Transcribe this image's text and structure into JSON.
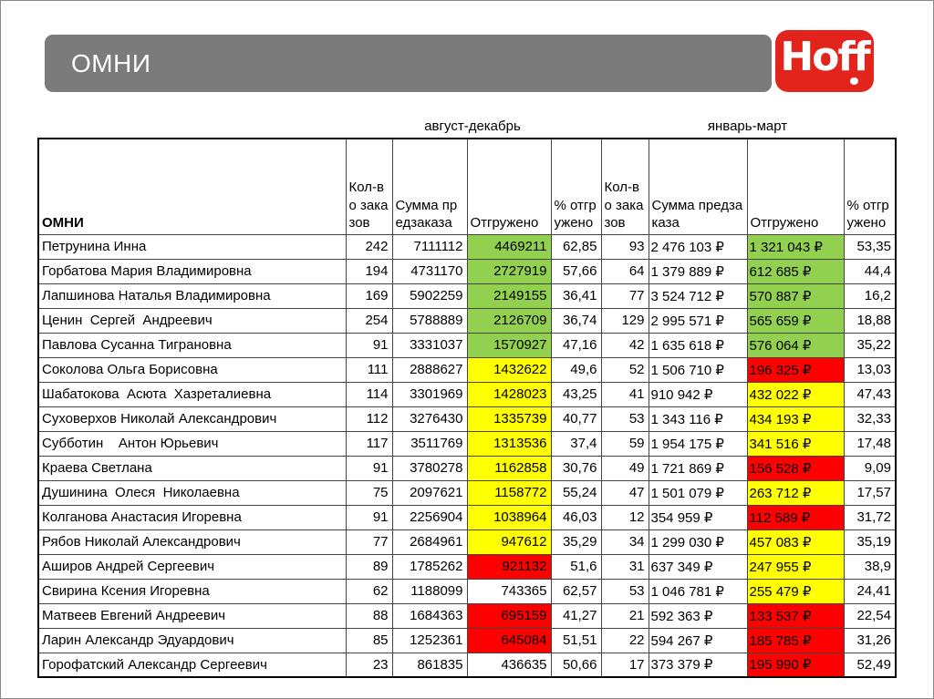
{
  "title": "ОМНИ",
  "logo": {
    "text": "Hoff"
  },
  "periods": {
    "first": "август-декабрь",
    "second": "январь-март"
  },
  "colors": {
    "green": "#92D050",
    "yellow": "#FFFF00",
    "red": "#FF0000",
    "title_gray": "#7B7B7B",
    "logo_red": "#E3241D"
  },
  "table": {
    "first_header": "ОМНИ",
    "col_headers": [
      "Кол-во заказов",
      "Сумма предзаказа",
      "Отгружено",
      "% отгружено",
      "Кол-во заказов",
      "Сумма предзаказа",
      "Отгружено",
      "% отгружено"
    ],
    "rows": [
      {
        "name": "Петрунина Инна",
        "values": [
          "242",
          "7111112",
          "4469211",
          "62,85",
          "93",
          "2 476 103 ₽",
          "1 321 043 ₽",
          "53,35"
        ],
        "fills": [
          null,
          null,
          "green",
          null,
          null,
          null,
          "green",
          null
        ]
      },
      {
        "name": "Горбатова Мария Владимировна",
        "values": [
          "194",
          "4731170",
          "2727919",
          "57,66",
          "64",
          "1 379 889 ₽",
          "612 685 ₽",
          "44,4"
        ],
        "fills": [
          null,
          null,
          "green",
          null,
          null,
          null,
          "green",
          null
        ]
      },
      {
        "name": "Лапшинова Наталья Владимировна",
        "values": [
          "169",
          "5902259",
          "2149155",
          "36,41",
          "77",
          "3 524 712 ₽",
          "570 887 ₽",
          "16,2"
        ],
        "fills": [
          null,
          null,
          "green",
          null,
          null,
          null,
          "green",
          null
        ]
      },
      {
        "name": "Ценин  Сергей  Андреевич",
        "values": [
          "254",
          "5788889",
          "2126709",
          "36,74",
          "129",
          "2 995 571 ₽",
          "565 659 ₽",
          "18,88"
        ],
        "fills": [
          null,
          null,
          "green",
          null,
          null,
          null,
          "green",
          null
        ]
      },
      {
        "name": "Павлова Сусанна Тиграновна",
        "values": [
          "91",
          "3331037",
          "1570927",
          "47,16",
          "42",
          "1 635 618 ₽",
          "576 064 ₽",
          "35,22"
        ],
        "fills": [
          null,
          null,
          "green",
          null,
          null,
          null,
          "green",
          null
        ]
      },
      {
        "name": "Соколова Ольга Борисовна",
        "values": [
          "111",
          "2888627",
          "1432622",
          "49,6",
          "52",
          "1 506 710 ₽",
          "196 325 ₽",
          "13,03"
        ],
        "fills": [
          null,
          null,
          "yellow",
          null,
          null,
          null,
          "red",
          null
        ]
      },
      {
        "name": "Шабатокова  Асюта  Хазреталиевна",
        "values": [
          "114",
          "3301969",
          "1428023",
          "43,25",
          "41",
          "910 942 ₽",
          "432 022 ₽",
          "47,43"
        ],
        "fills": [
          null,
          null,
          "yellow",
          null,
          null,
          null,
          "yellow",
          null
        ]
      },
      {
        "name": "Суховерхов Николай Александрович",
        "values": [
          "112",
          "3276430",
          "1335739",
          "40,77",
          "53",
          "1 343 116 ₽",
          "434 193 ₽",
          "32,33"
        ],
        "fills": [
          null,
          null,
          "yellow",
          null,
          null,
          null,
          "yellow",
          null
        ]
      },
      {
        "name": "Субботин    Антон Юрьевич",
        "values": [
          "117",
          "3511769",
          "1313536",
          "37,4",
          "59",
          "1 954 175 ₽",
          "341 516 ₽",
          "17,48"
        ],
        "fills": [
          null,
          null,
          "yellow",
          null,
          null,
          null,
          "yellow",
          null
        ]
      },
      {
        "name": "Краева Светлана",
        "values": [
          "91",
          "3780278",
          "1162858",
          "30,76",
          "49",
          "1 721 869 ₽",
          "156 528 ₽",
          "9,09"
        ],
        "fills": [
          null,
          null,
          "yellow",
          null,
          null,
          null,
          "red",
          null
        ]
      },
      {
        "name": "Душинина  Олеся  Николаевна",
        "values": [
          "75",
          "2097621",
          "1158772",
          "55,24",
          "47",
          "1 501 079 ₽",
          "263 712 ₽",
          "17,57"
        ],
        "fills": [
          null,
          null,
          "yellow",
          null,
          null,
          null,
          "yellow",
          null
        ]
      },
      {
        "name": "Колганова Анастасия Игоревна",
        "values": [
          "91",
          "2256904",
          "1038964",
          "46,03",
          "12",
          "354 959 ₽",
          "112 589 ₽",
          "31,72"
        ],
        "fills": [
          null,
          null,
          "yellow",
          null,
          null,
          null,
          "red",
          null
        ]
      },
      {
        "name": "Рябов Николай Александрович",
        "values": [
          "77",
          "2684961",
          "947612",
          "35,29",
          "34",
          "1 299 030 ₽",
          "457 083 ₽",
          "35,19"
        ],
        "fills": [
          null,
          null,
          "yellow",
          null,
          null,
          null,
          "yellow",
          null
        ]
      },
      {
        "name": "Аширов Андрей Сергеевич",
        "values": [
          "89",
          "1785262",
          "921132",
          "51,6",
          "31",
          "637 349 ₽",
          "247 955 ₽",
          "38,9"
        ],
        "fills": [
          null,
          null,
          "red",
          null,
          null,
          null,
          "yellow",
          null
        ]
      },
      {
        "name": "Свирина Ксения Игоревна",
        "values": [
          "62",
          "1188099",
          "743365",
          "62,57",
          "53",
          "1 046 781 ₽",
          "255 479 ₽",
          "24,41"
        ],
        "fills": [
          null,
          null,
          null,
          null,
          null,
          null,
          "yellow",
          null
        ]
      },
      {
        "name": "Матвеев Евгений Андреевич",
        "values": [
          "88",
          "1684363",
          "695159",
          "41,27",
          "21",
          "592 363 ₽",
          "133 537 ₽",
          "22,54"
        ],
        "fills": [
          null,
          null,
          "red",
          null,
          null,
          null,
          "red",
          null
        ]
      },
      {
        "name": "Ларин Александр Эдуардович",
        "values": [
          "85",
          "1252361",
          "645084",
          "51,51",
          "22",
          "594 267 ₽",
          "185 785 ₽",
          "31,26"
        ],
        "fills": [
          null,
          null,
          "red",
          null,
          null,
          null,
          "red",
          null
        ]
      },
      {
        "name": "Горофатский Александр Сергеевич",
        "values": [
          "23",
          "861835",
          "436635",
          "50,66",
          "17",
          "373 379 ₽",
          "195 990 ₽",
          "52,49"
        ],
        "fills": [
          null,
          null,
          null,
          null,
          null,
          null,
          "red",
          null
        ]
      }
    ]
  }
}
